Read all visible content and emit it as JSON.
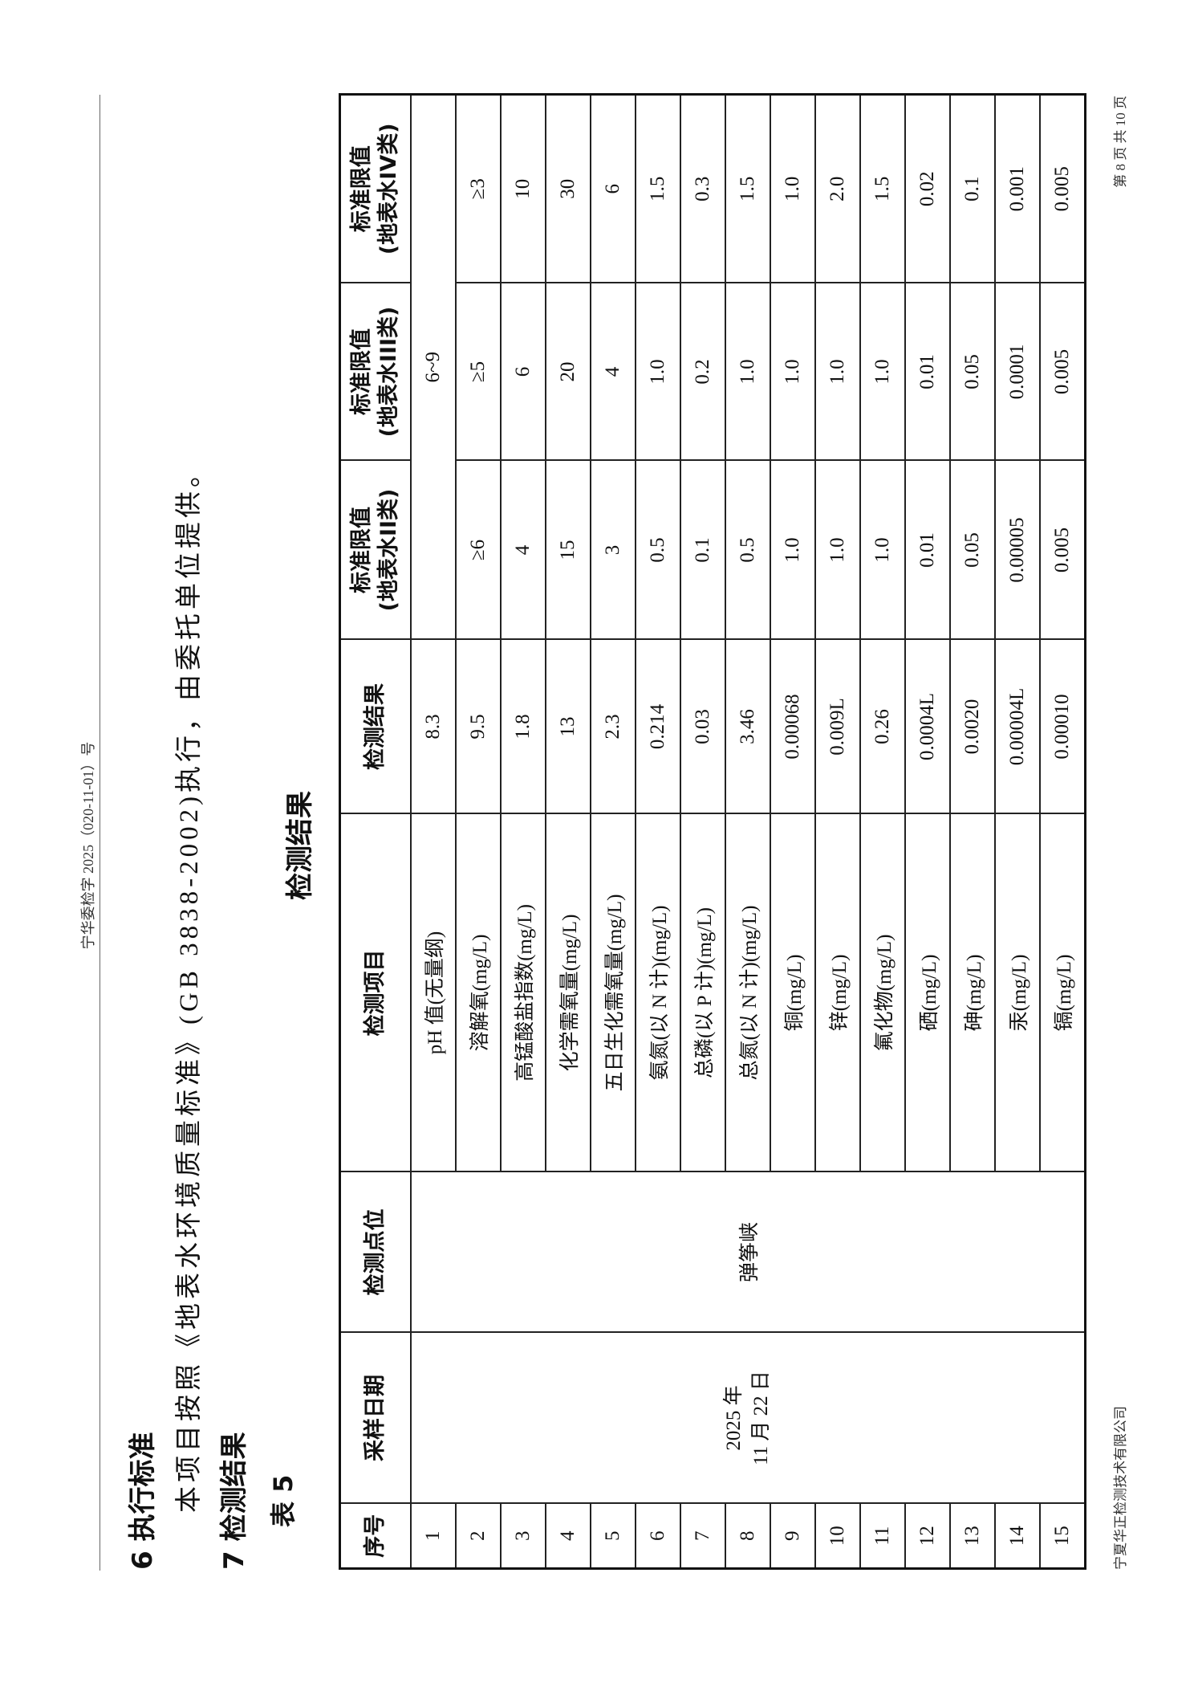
{
  "header": {
    "doc_number": "宁华委检字 2025（020-11-01）号"
  },
  "section6": {
    "heading": "6  执行标准",
    "paragraph": "本项目按照《地表水环境质量标准》(GB 3838-2002)执行，由委托单位提供。"
  },
  "section7": {
    "heading": "7  检测结果"
  },
  "table": {
    "label": "表 5",
    "title": "检测结果",
    "columns": [
      "序号",
      "采样日期",
      "检测点位",
      "检测项目",
      "检测结果",
      "标准限值\n(地表水II类)",
      "标准限值\n(地表水III类)",
      "标准限值\n(地表水IV类)"
    ],
    "sample_date": "2025 年\n11 月 22 日",
    "location": "弹筝峡",
    "ph_range": "6~9",
    "rows": [
      {
        "no": "1",
        "item": "pH 值(无量纲)",
        "result": "8.3",
        "II": "",
        "III": "6~9",
        "IV": ""
      },
      {
        "no": "2",
        "item": "溶解氧(mg/L)",
        "result": "9.5",
        "II": "≥6",
        "III": "≥5",
        "IV": "≥3"
      },
      {
        "no": "3",
        "item": "高锰酸盐指数(mg/L)",
        "result": "1.8",
        "II": "4",
        "III": "6",
        "IV": "10"
      },
      {
        "no": "4",
        "item": "化学需氧量(mg/L)",
        "result": "13",
        "II": "15",
        "III": "20",
        "IV": "30"
      },
      {
        "no": "5",
        "item": "五日生化需氧量(mg/L)",
        "result": "2.3",
        "II": "3",
        "III": "4",
        "IV": "6"
      },
      {
        "no": "6",
        "item": "氨氮(以 N 计)(mg/L)",
        "result": "0.214",
        "II": "0.5",
        "III": "1.0",
        "IV": "1.5"
      },
      {
        "no": "7",
        "item": "总磷(以 P 计)(mg/L)",
        "result": "0.03",
        "II": "0.1",
        "III": "0.2",
        "IV": "0.3"
      },
      {
        "no": "8",
        "item": "总氮(以 N 计)(mg/L)",
        "result": "3.46",
        "II": "0.5",
        "III": "1.0",
        "IV": "1.5"
      },
      {
        "no": "9",
        "item": "铜(mg/L)",
        "result": "0.00068",
        "II": "1.0",
        "III": "1.0",
        "IV": "1.0"
      },
      {
        "no": "10",
        "item": "锌(mg/L)",
        "result": "0.009L",
        "II": "1.0",
        "III": "1.0",
        "IV": "2.0"
      },
      {
        "no": "11",
        "item": "氟化物(mg/L)",
        "result": "0.26",
        "II": "1.0",
        "III": "1.0",
        "IV": "1.5"
      },
      {
        "no": "12",
        "item": "硒(mg/L)",
        "result": "0.0004L",
        "II": "0.01",
        "III": "0.01",
        "IV": "0.02"
      },
      {
        "no": "13",
        "item": "砷(mg/L)",
        "result": "0.0020",
        "II": "0.05",
        "III": "0.05",
        "IV": "0.1"
      },
      {
        "no": "14",
        "item": "汞(mg/L)",
        "result": "0.00004L",
        "II": "0.00005",
        "III": "0.0001",
        "IV": "0.001"
      },
      {
        "no": "15",
        "item": "镉(mg/L)",
        "result": "0.00010",
        "II": "0.005",
        "III": "0.005",
        "IV": "0.005"
      }
    ]
  },
  "footer": {
    "company": "宁夏华正检测技术有限公司",
    "page": "第 8 页 共 10 页"
  }
}
